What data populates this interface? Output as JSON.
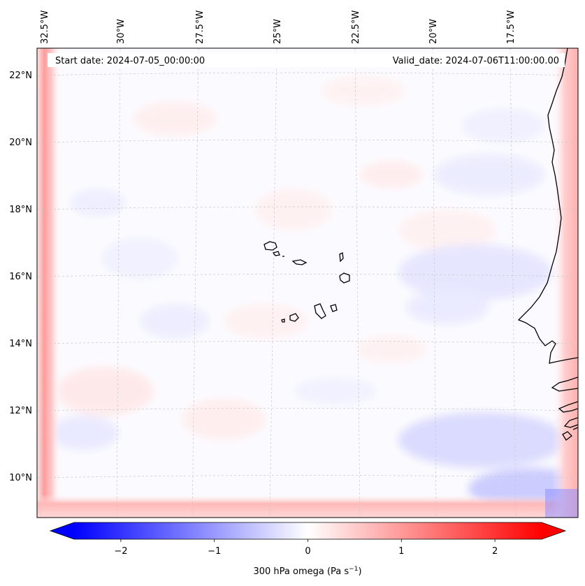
{
  "header": {
    "start_date": "Start date: 2024-07-05_00:00:00",
    "valid_date": "Valid_date: 2024-07-06T11:00:00.00"
  },
  "map": {
    "lon_labels": [
      "32.5°W",
      "30°W",
      "27.5°W",
      "25°W",
      "22.5°W",
      "20°W",
      "17.5°W"
    ],
    "lat_labels": [
      "22°N",
      "20°N",
      "18°N",
      "16°N",
      "14°N",
      "12°N",
      "10°N"
    ],
    "field": "300 hPa omega",
    "colors": {
      "negative": "#0000ff",
      "zero": "#ffffff",
      "positive": "#ff0000",
      "coast": "#000000",
      "grid": "#bfbfbf"
    }
  },
  "colorbar": {
    "label": "300 hPa omega (Pa s",
    "label_sup": "−1",
    "label_close": ")",
    "ticks": [
      "−2",
      "−1",
      "0",
      "1",
      "2"
    ],
    "tick_values": [
      -2,
      -1,
      0,
      1,
      2
    ],
    "range": [
      -2.5,
      2.5
    ],
    "extend": "both"
  }
}
